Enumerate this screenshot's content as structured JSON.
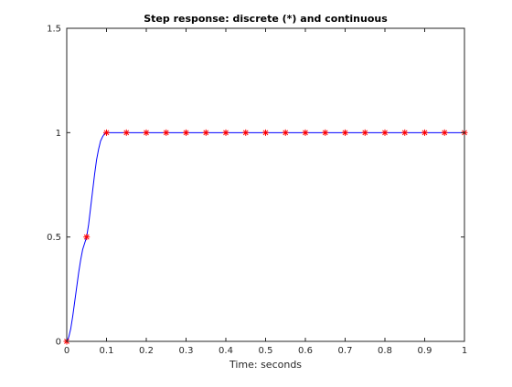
{
  "chart_data": {
    "type": "line",
    "title": "Step response: discrete (*) and continuous",
    "xlabel": "Time: seconds",
    "ylabel": "",
    "xlim": [
      0,
      1
    ],
    "ylim": [
      0,
      1.5
    ],
    "xticks": [
      0,
      0.1,
      0.2,
      0.3,
      0.4,
      0.5,
      0.6,
      0.7,
      0.8,
      0.9,
      1
    ],
    "xtick_labels": [
      "0",
      "0.1",
      "0.2",
      "0.3",
      "0.4",
      "0.5",
      "0.6",
      "0.7",
      "0.8",
      "0.9",
      "1"
    ],
    "yticks": [
      0,
      0.5,
      1,
      1.5
    ],
    "ytick_labels": [
      "0",
      "0.5",
      "1",
      "1.5"
    ],
    "grid": false,
    "series": [
      {
        "kind": "line",
        "color": "#0000ff",
        "x": [
          0,
          0.005,
          0.01,
          0.015,
          0.02,
          0.025,
          0.03,
          0.035,
          0.04,
          0.045,
          0.05,
          0.055,
          0.06,
          0.065,
          0.07,
          0.075,
          0.08,
          0.085,
          0.09,
          0.095,
          0.1,
          0.15,
          0.2,
          0.3,
          0.4,
          0.5,
          0.6,
          0.7,
          0.8,
          0.9,
          1
        ],
        "y": [
          0,
          0.02,
          0.06,
          0.12,
          0.19,
          0.26,
          0.33,
          0.39,
          0.44,
          0.47,
          0.5,
          0.56,
          0.64,
          0.72,
          0.8,
          0.87,
          0.92,
          0.96,
          0.98,
          0.995,
          1,
          1,
          1,
          1,
          1,
          1,
          1,
          1,
          1,
          1,
          1
        ]
      },
      {
        "kind": "markers",
        "marker": "*",
        "color": "#ff0000",
        "x": [
          0,
          0.05,
          0.1,
          0.15,
          0.2,
          0.25,
          0.3,
          0.35,
          0.4,
          0.45,
          0.5,
          0.55,
          0.6,
          0.65,
          0.7,
          0.75,
          0.8,
          0.85,
          0.9,
          0.95,
          1
        ],
        "y": [
          0,
          0.5,
          1,
          1,
          1,
          1,
          1,
          1,
          1,
          1,
          1,
          1,
          1,
          1,
          1,
          1,
          1,
          1,
          1,
          1,
          1
        ]
      }
    ]
  }
}
